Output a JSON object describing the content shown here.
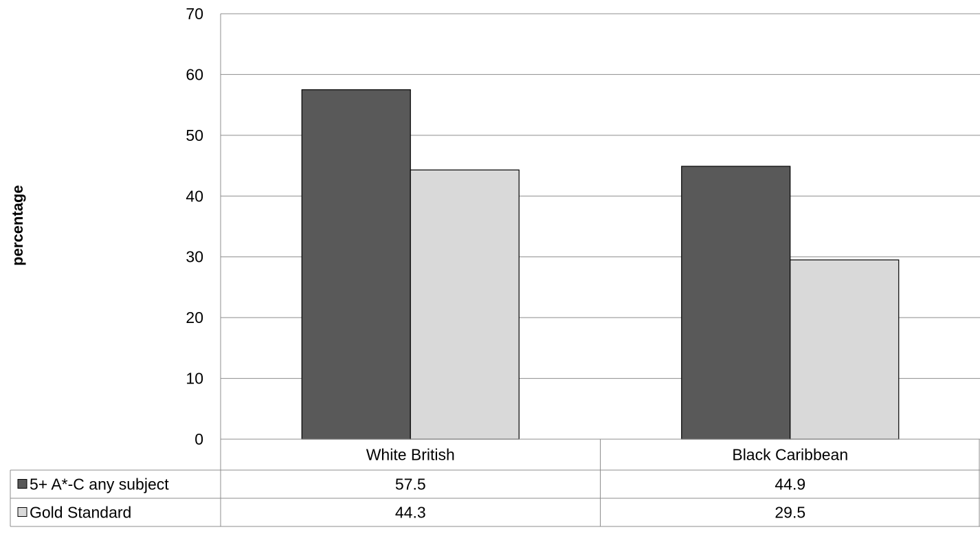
{
  "chart_data": {
    "type": "bar",
    "title": "",
    "xlabel": "",
    "ylabel": "percentage",
    "ylim": [
      0,
      70
    ],
    "yticks": [
      0,
      10,
      20,
      30,
      40,
      50,
      60,
      70
    ],
    "categories": [
      "White British",
      "Black Caribbean"
    ],
    "series": [
      {
        "name": "5+ A*-C any subject",
        "values": [
          57.5,
          44.9
        ],
        "color": "#595959"
      },
      {
        "name": "Gold Standard",
        "values": [
          44.3,
          29.5
        ],
        "color": "#d9d9d9"
      }
    ],
    "data_labels": {
      "5+ A*-C any subject": [
        "57.5",
        "44.9"
      ],
      "Gold Standard": [
        "44.3",
        "29.5"
      ]
    },
    "grid": true,
    "legend": "data table below chart"
  }
}
